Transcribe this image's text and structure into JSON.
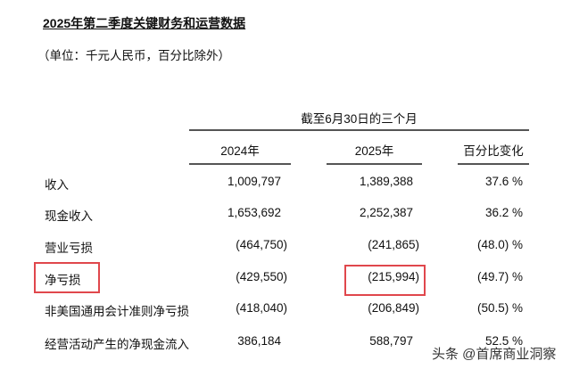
{
  "title": "2025年第二季度关键财务和运营数据",
  "unit_note": "（单位：千元人民币，百分比除外）",
  "table": {
    "period_header": "截至6月30日的三个月",
    "columns": [
      "2024年",
      "2025年",
      "百分比变化"
    ],
    "rows": [
      {
        "label": "收入",
        "v2024": "1,009,797",
        "v2025": "1,389,388",
        "change": "37.6 %"
      },
      {
        "label": "现金收入",
        "v2024": "1,653,692",
        "v2025": "2,252,387",
        "change": "36.2 %"
      },
      {
        "label": "营业亏损",
        "v2024": "(464,750)",
        "v2025": "(241,865)",
        "change": "(48.0) %"
      },
      {
        "label": "净亏损",
        "v2024": "(429,550)",
        "v2025": "(215,994)",
        "change": "(49.7) %"
      },
      {
        "label": "非美国通用会计准则净亏损",
        "v2024": "(418,040)",
        "v2025": "(206,849)",
        "change": "(50.5) %"
      },
      {
        "label": "经营活动产生的净现金流入",
        "v2024": "386,184",
        "v2025": "588,797",
        "change": "52.5 %"
      }
    ]
  },
  "highlight_color": "#e0474c",
  "watermark": "头条 @首席商业洞察"
}
